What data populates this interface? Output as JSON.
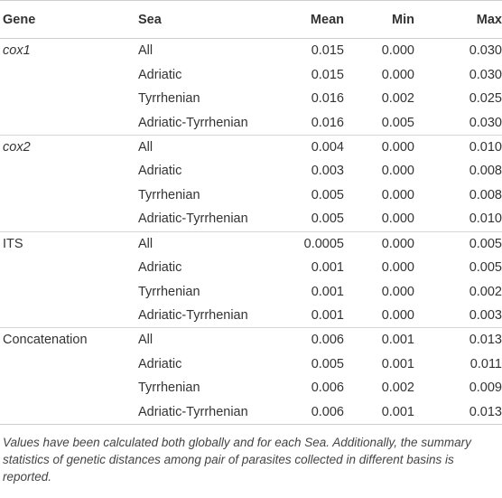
{
  "table": {
    "headers": {
      "gene": "Gene",
      "sea": "Sea",
      "mean": "Mean",
      "min": "Min",
      "max": "Max"
    },
    "groups": [
      {
        "gene": "cox1",
        "gene_italic": true,
        "rows": [
          {
            "sea": "All",
            "mean": "0.015",
            "min": "0.000",
            "max": "0.030"
          },
          {
            "sea": "Adriatic",
            "mean": "0.015",
            "min": "0.000",
            "max": "0.030"
          },
          {
            "sea": "Tyrrhenian",
            "mean": "0.016",
            "min": "0.002",
            "max": "0.025"
          },
          {
            "sea": "Adriatic-Tyrrhenian",
            "mean": "0.016",
            "min": "0.005",
            "max": "0.030"
          }
        ]
      },
      {
        "gene": "cox2",
        "gene_italic": true,
        "rows": [
          {
            "sea": "All",
            "mean": "0.004",
            "min": "0.000",
            "max": "0.010"
          },
          {
            "sea": "Adriatic",
            "mean": "0.003",
            "min": "0.000",
            "max": "0.008"
          },
          {
            "sea": "Tyrrhenian",
            "mean": "0.005",
            "min": "0.000",
            "max": "0.008"
          },
          {
            "sea": "Adriatic-Tyrrhenian",
            "mean": "0.005",
            "min": "0.000",
            "max": "0.010"
          }
        ]
      },
      {
        "gene": "ITS",
        "gene_italic": false,
        "rows": [
          {
            "sea": "All",
            "mean": "0.0005",
            "min": "0.000",
            "max": "0.005"
          },
          {
            "sea": "Adriatic",
            "mean": "0.001",
            "min": "0.000",
            "max": "0.005"
          },
          {
            "sea": "Tyrrhenian",
            "mean": "0.001",
            "min": "0.000",
            "max": "0.002"
          },
          {
            "sea": "Adriatic-Tyrrhenian",
            "mean": "0.001",
            "min": "0.000",
            "max": "0.003"
          }
        ]
      },
      {
        "gene": "Concatenation",
        "gene_italic": false,
        "rows": [
          {
            "sea": "All",
            "mean": "0.006",
            "min": "0.001",
            "max": "0.013"
          },
          {
            "sea": "Adriatic",
            "mean": "0.005",
            "min": "0.001",
            "max": "0.011"
          },
          {
            "sea": "Tyrrhenian",
            "mean": "0.006",
            "min": "0.002",
            "max": "0.009"
          },
          {
            "sea": "Adriatic-Tyrrhenian",
            "mean": "0.006",
            "min": "0.001",
            "max": "0.013"
          }
        ]
      }
    ]
  },
  "footnote": "Values have been calculated both globally and for each Sea. Additionally, the summary statistics of genetic distances among pair of parasites collected in different basins is reported."
}
